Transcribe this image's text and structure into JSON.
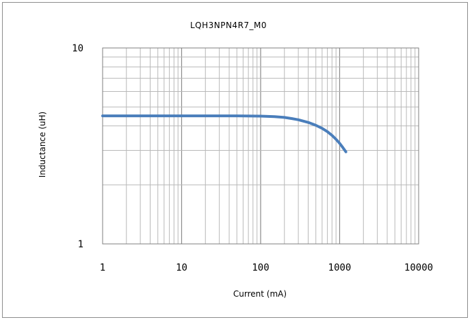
{
  "chart_data": {
    "type": "line",
    "title": "LQH3NPN4R7_M0",
    "xlabel": "Current (mA)",
    "ylabel": "Inductance (uH)",
    "x_scale": "log",
    "y_scale": "log",
    "xlim": [
      1,
      10000
    ],
    "ylim": [
      1,
      10
    ],
    "x_ticks": [
      "1",
      "10",
      "100",
      "1000",
      "10000"
    ],
    "y_ticks": [
      "1",
      "10"
    ],
    "grid": true,
    "legend": "none",
    "series_color": "#4a7ebb",
    "series": [
      {
        "x": [
          1,
          2,
          5,
          10,
          20,
          50,
          100,
          150,
          200,
          250,
          300,
          400,
          500,
          600,
          700,
          800,
          900,
          1000,
          1100,
          1200
        ],
        "y": [
          4.5,
          4.5,
          4.5,
          4.5,
          4.5,
          4.5,
          4.49,
          4.46,
          4.42,
          4.36,
          4.3,
          4.17,
          4.03,
          3.89,
          3.74,
          3.58,
          3.42,
          3.26,
          3.1,
          2.95
        ]
      }
    ]
  }
}
